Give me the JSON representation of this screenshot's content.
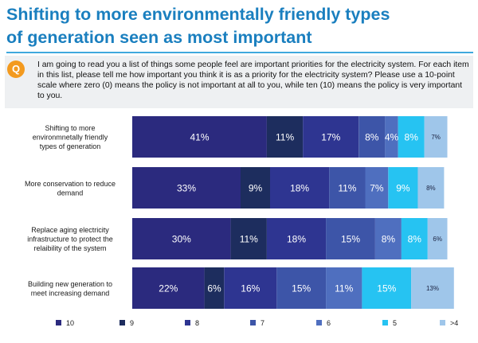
{
  "title": {
    "line1": "Shifting to more environmentally friendly types",
    "line2": "of generation seen as most important"
  },
  "question": {
    "badge": "Q",
    "text": "I am going to read you a list of things some people feel are important priorities for the electricity system.  For each item in this list, please tell me how important you think it is as a priority for the electricity system? Please use a 10-point scale where zero (0) means the policy is not important at all to you, while ten (10) means the policy is very important to you."
  },
  "chart_data": {
    "type": "bar",
    "orientation": "horizontal",
    "stacked": true,
    "categories": [
      [
        "Shifting to more",
        "environmnetally friendly",
        "types of generation"
      ],
      [
        "More conservation to reduce",
        "demand"
      ],
      [
        "Replace aging electricity",
        "infrastructure to protect the",
        "relaibility of the system"
      ],
      [
        "Building new generation to",
        "meet increasing demand"
      ]
    ],
    "series": [
      {
        "name": "10",
        "color": "#2b2a7e",
        "values": [
          41,
          33,
          30,
          22
        ],
        "labels": [
          "41%",
          "33%",
          "30%",
          "22%"
        ]
      },
      {
        "name": "9",
        "color": "#1d2d5e",
        "values": [
          11,
          9,
          11,
          6
        ],
        "labels": [
          "11%",
          "9%",
          "11%",
          "6%"
        ]
      },
      {
        "name": "8",
        "color": "#2e3591",
        "values": [
          17,
          18,
          18,
          16
        ],
        "labels": [
          "17%",
          "18%",
          "18%",
          "16%"
        ]
      },
      {
        "name": "7",
        "color": "#3d55a8",
        "values": [
          8,
          11,
          15,
          15
        ],
        "labels": [
          "8%",
          "11%",
          "15%",
          "15%"
        ]
      },
      {
        "name": "6",
        "color": "#4f6fbf",
        "values": [
          4,
          7,
          8,
          11
        ],
        "labels": [
          "4%",
          "7%",
          "8%",
          "11%"
        ]
      },
      {
        "name": "5",
        "color": "#26c3f2",
        "values": [
          8,
          9,
          8,
          15
        ],
        "labels": [
          "8%",
          "9%",
          "8%",
          "15%"
        ]
      },
      {
        "name": ">4",
        "color": "#9fc6ea",
        "values": [
          7,
          8,
          6,
          13
        ],
        "labels": [
          "7%",
          "8%",
          "6%",
          "13%"
        ]
      }
    ],
    "legend_position": "bottom",
    "grid": false
  }
}
